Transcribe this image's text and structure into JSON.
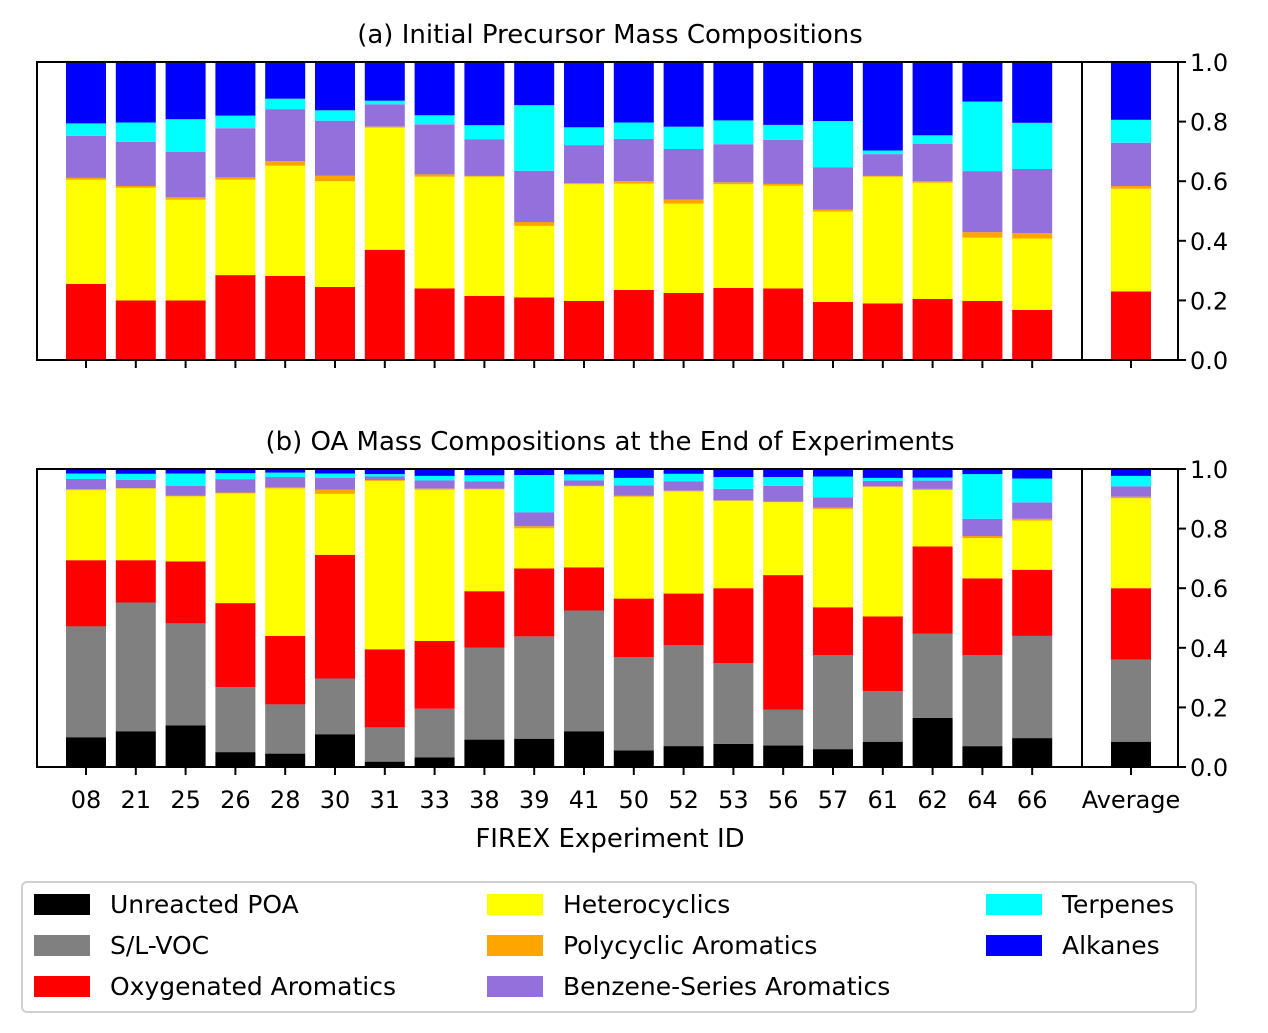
{
  "chart_data": [
    {
      "type": "bar",
      "stacked": true,
      "title": "(a) Initial Precursor Mass Compositions",
      "xlabel": "",
      "ylabel": "",
      "ylim": [
        0,
        1.0
      ],
      "yticks": [
        "0.0",
        "0.2",
        "0.4",
        "0.6",
        "0.8",
        "1.0"
      ],
      "yaxis_side": "right",
      "categories": [
        "08",
        "21",
        "25",
        "26",
        "28",
        "30",
        "31",
        "33",
        "38",
        "39",
        "41",
        "50",
        "52",
        "53",
        "56",
        "57",
        "61",
        "62",
        "64",
        "66",
        "Average"
      ],
      "series": [
        {
          "name": "Oxygenated Aromatics",
          "color": "#ff0000",
          "values": [
            0.255,
            0.2,
            0.2,
            0.285,
            0.282,
            0.245,
            0.37,
            0.24,
            0.215,
            0.21,
            0.198,
            0.235,
            0.225,
            0.242,
            0.24,
            0.195,
            0.19,
            0.205,
            0.198,
            0.168,
            0.23
          ]
        },
        {
          "name": "Heterocyclics",
          "color": "#ffff00",
          "values": [
            0.35,
            0.378,
            0.338,
            0.32,
            0.37,
            0.355,
            0.41,
            0.375,
            0.4,
            0.24,
            0.392,
            0.357,
            0.3,
            0.348,
            0.345,
            0.303,
            0.425,
            0.39,
            0.213,
            0.24,
            0.345
          ]
        },
        {
          "name": "Polycyclic Aromatics",
          "color": "#ffa500",
          "values": [
            0.006,
            0.006,
            0.008,
            0.008,
            0.015,
            0.018,
            0.003,
            0.008,
            0.003,
            0.013,
            0.003,
            0.008,
            0.013,
            0.006,
            0.006,
            0.007,
            0.003,
            0.006,
            0.018,
            0.018,
            0.009
          ]
        },
        {
          "name": "Benzene-Series Aromatics",
          "color": "#9370db",
          "values": [
            0.141,
            0.148,
            0.152,
            0.165,
            0.175,
            0.185,
            0.075,
            0.168,
            0.122,
            0.172,
            0.128,
            0.142,
            0.17,
            0.128,
            0.148,
            0.142,
            0.073,
            0.125,
            0.205,
            0.215,
            0.145
          ]
        },
        {
          "name": "Terpenes",
          "color": "#00ffff",
          "values": [
            0.042,
            0.065,
            0.11,
            0.042,
            0.035,
            0.035,
            0.012,
            0.03,
            0.048,
            0.22,
            0.06,
            0.055,
            0.075,
            0.08,
            0.05,
            0.155,
            0.012,
            0.028,
            0.233,
            0.155,
            0.077
          ]
        },
        {
          "name": "Alkanes",
          "color": "#0000ff",
          "values": [
            0.206,
            0.203,
            0.192,
            0.18,
            0.123,
            0.162,
            0.13,
            0.179,
            0.212,
            0.145,
            0.219,
            0.203,
            0.217,
            0.196,
            0.211,
            0.198,
            0.297,
            0.246,
            0.133,
            0.204,
            0.194
          ]
        }
      ]
    },
    {
      "type": "bar",
      "stacked": true,
      "title": "(b) OA Mass Compositions at the End of Experiments",
      "xlabel": "FIREX Experiment ID",
      "ylabel": "",
      "ylim": [
        0,
        1.0
      ],
      "yticks": [
        "0.0",
        "0.2",
        "0.4",
        "0.6",
        "0.8",
        "1.0"
      ],
      "yaxis_side": "right",
      "categories": [
        "08",
        "21",
        "25",
        "26",
        "28",
        "30",
        "31",
        "33",
        "38",
        "39",
        "41",
        "50",
        "52",
        "53",
        "56",
        "57",
        "61",
        "62",
        "64",
        "66",
        "Average"
      ],
      "series": [
        {
          "name": "Unreacted POA",
          "color": "#000000",
          "values": [
            0.1,
            0.12,
            0.14,
            0.05,
            0.045,
            0.11,
            0.018,
            0.032,
            0.092,
            0.095,
            0.12,
            0.056,
            0.07,
            0.078,
            0.072,
            0.06,
            0.085,
            0.165,
            0.07,
            0.097,
            0.085
          ]
        },
        {
          "name": "S/L-VOC",
          "color": "#808080",
          "values": [
            0.372,
            0.432,
            0.342,
            0.218,
            0.165,
            0.187,
            0.115,
            0.163,
            0.308,
            0.343,
            0.405,
            0.312,
            0.339,
            0.27,
            0.12,
            0.316,
            0.17,
            0.282,
            0.305,
            0.343,
            0.275
          ]
        },
        {
          "name": "Oxygenated Aromatics",
          "color": "#ff0000",
          "values": [
            0.222,
            0.142,
            0.208,
            0.282,
            0.23,
            0.415,
            0.262,
            0.228,
            0.19,
            0.228,
            0.145,
            0.197,
            0.173,
            0.252,
            0.452,
            0.16,
            0.25,
            0.293,
            0.258,
            0.222,
            0.24
          ]
        },
        {
          "name": "Heterocyclics",
          "color": "#ffff00",
          "values": [
            0.235,
            0.24,
            0.218,
            0.368,
            0.495,
            0.205,
            0.565,
            0.508,
            0.342,
            0.135,
            0.272,
            0.342,
            0.343,
            0.293,
            0.245,
            0.33,
            0.435,
            0.19,
            0.135,
            0.165,
            0.302
          ]
        },
        {
          "name": "Polycyclic Aromatics",
          "color": "#ffa500",
          "values": [
            0.003,
            0.002,
            0.002,
            0.003,
            0.003,
            0.013,
            0.003,
            0.003,
            0.002,
            0.007,
            0.002,
            0.003,
            0.002,
            0.002,
            0.002,
            0.004,
            0.002,
            0.003,
            0.007,
            0.006,
            0.005
          ]
        },
        {
          "name": "Benzene-Series Aromatics",
          "color": "#9370db",
          "values": [
            0.035,
            0.028,
            0.033,
            0.045,
            0.035,
            0.04,
            0.012,
            0.028,
            0.025,
            0.047,
            0.018,
            0.035,
            0.032,
            0.038,
            0.052,
            0.035,
            0.018,
            0.028,
            0.058,
            0.055,
            0.035
          ]
        },
        {
          "name": "Terpenes",
          "color": "#00ffff",
          "values": [
            0.018,
            0.02,
            0.042,
            0.02,
            0.015,
            0.015,
            0.008,
            0.015,
            0.02,
            0.125,
            0.02,
            0.025,
            0.025,
            0.04,
            0.03,
            0.07,
            0.01,
            0.01,
            0.15,
            0.08,
            0.035
          ]
        },
        {
          "name": "Alkanes",
          "color": "#0000ff",
          "values": [
            0.015,
            0.016,
            0.015,
            0.014,
            0.012,
            0.015,
            0.017,
            0.023,
            0.021,
            0.02,
            0.018,
            0.03,
            0.016,
            0.027,
            0.027,
            0.025,
            0.03,
            0.029,
            0.017,
            0.032,
            0.023
          ]
        }
      ]
    }
  ],
  "legend": {
    "placement": "bottom",
    "entries": [
      {
        "label": "Unreacted POA",
        "color": "#000000"
      },
      {
        "label": "S/L-VOC",
        "color": "#808080"
      },
      {
        "label": "Oxygenated Aromatics",
        "color": "#ff0000"
      },
      {
        "label": "Heterocyclics",
        "color": "#ffff00"
      },
      {
        "label": "Polycyclic Aromatics",
        "color": "#ffa500"
      },
      {
        "label": "Benzene-Series Aromatics",
        "color": "#9370db"
      },
      {
        "label": "Terpenes",
        "color": "#00ffff"
      },
      {
        "label": "Alkanes",
        "color": "#0000ff"
      }
    ]
  }
}
